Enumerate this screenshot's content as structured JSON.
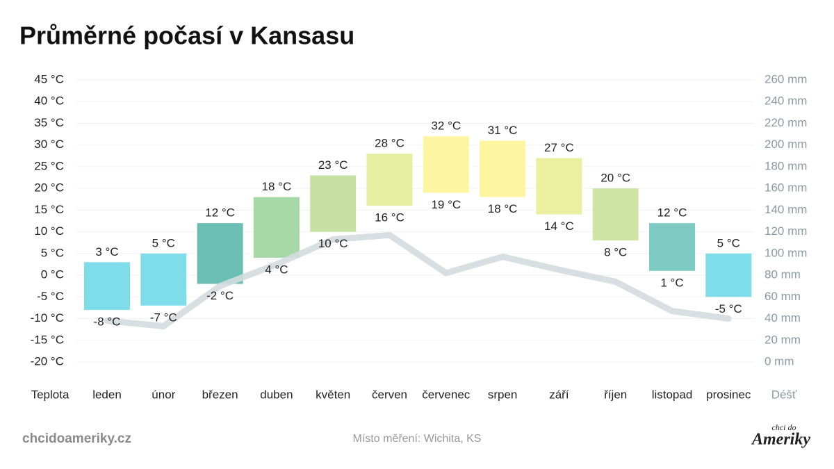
{
  "chart_data": {
    "type": "bar",
    "title": "Průměrné počasí v Kansasu",
    "x_label": "Teplota",
    "y2_label": "Déšť",
    "categories": [
      "leden",
      "únor",
      "březen",
      "duben",
      "květen",
      "červen",
      "červenec",
      "srpen",
      "září",
      "říjen",
      "listopad",
      "prosinec"
    ],
    "high": {
      "values": [
        3,
        5,
        12,
        18,
        23,
        28,
        32,
        31,
        27,
        20,
        12,
        5
      ],
      "value_labels": [
        "3 °C",
        "5 °C",
        "12 °C",
        "18 °C",
        "23 °C",
        "28 °C",
        "32 °C",
        "31 °C",
        "27 °C",
        "20 °C",
        "12 °C",
        "5 °C"
      ]
    },
    "low": {
      "values": [
        -8,
        -7,
        -2,
        4,
        10,
        16,
        19,
        18,
        14,
        8,
        1,
        -5
      ],
      "value_labels": [
        "-8 °C",
        "-7 °C",
        "-2 °C",
        "4 °C",
        "10 °C",
        "16 °C",
        "19 °C",
        "18 °C",
        "14 °C",
        "8 °C",
        "1 °C",
        "-5 °C"
      ]
    },
    "colors": [
      "#7fdde9",
      "#7fdde9",
      "#6bbfb5",
      "#a6d8a8",
      "#c6e0a4",
      "#e4efa0",
      "#fdf5a0",
      "#fdf5a0",
      "#eaf0a0",
      "#cde4a4",
      "#7ecbc3",
      "#7fdde9"
    ],
    "rain": {
      "values": [
        38,
        33,
        70,
        90,
        113,
        117,
        82,
        97,
        85,
        74,
        47,
        40
      ],
      "color": "#d3dbdf",
      "axis": "y2"
    },
    "ylim": [
      -20,
      45
    ],
    "yticks": [
      {
        "value": -20,
        "label": "-20 °C"
      },
      {
        "value": -15,
        "label": "-15 °C"
      },
      {
        "value": -10,
        "label": "-10 °C"
      },
      {
        "value": -5,
        "label": "-5 °C"
      },
      {
        "value": 0,
        "label": "0 °C"
      },
      {
        "value": 5,
        "label": "5 °C"
      },
      {
        "value": 10,
        "label": "10 °C"
      },
      {
        "value": 15,
        "label": "15 °C"
      },
      {
        "value": 20,
        "label": "20 °C"
      },
      {
        "value": 25,
        "label": "25 °C"
      },
      {
        "value": 30,
        "label": "30 °C"
      },
      {
        "value": 35,
        "label": "35 °C"
      },
      {
        "value": 40,
        "label": "40 °C"
      },
      {
        "value": 45,
        "label": "45 °C"
      }
    ],
    "y2lim": [
      0,
      260
    ],
    "y2ticks": [
      {
        "value": 0,
        "label": "0 mm"
      },
      {
        "value": 20,
        "label": "20 mm"
      },
      {
        "value": 40,
        "label": "40 mm"
      },
      {
        "value": 60,
        "label": "60 mm"
      },
      {
        "value": 80,
        "label": "80 mm"
      },
      {
        "value": 100,
        "label": "100 mm"
      },
      {
        "value": 120,
        "label": "120 mm"
      },
      {
        "value": 140,
        "label": "140 mm"
      },
      {
        "value": 160,
        "label": "160 mm"
      },
      {
        "value": 180,
        "label": "180 mm"
      },
      {
        "value": 200,
        "label": "200 mm"
      },
      {
        "value": 220,
        "label": "220 mm"
      },
      {
        "value": 240,
        "label": "240 mm"
      },
      {
        "value": 260,
        "label": "260 mm"
      }
    ],
    "grid": true
  },
  "footer": {
    "site": "chcidoameriky.cz",
    "location": "Místo měření: Wichita, KS",
    "logo_top": "chci do",
    "logo_bottom": "Ameriky"
  }
}
